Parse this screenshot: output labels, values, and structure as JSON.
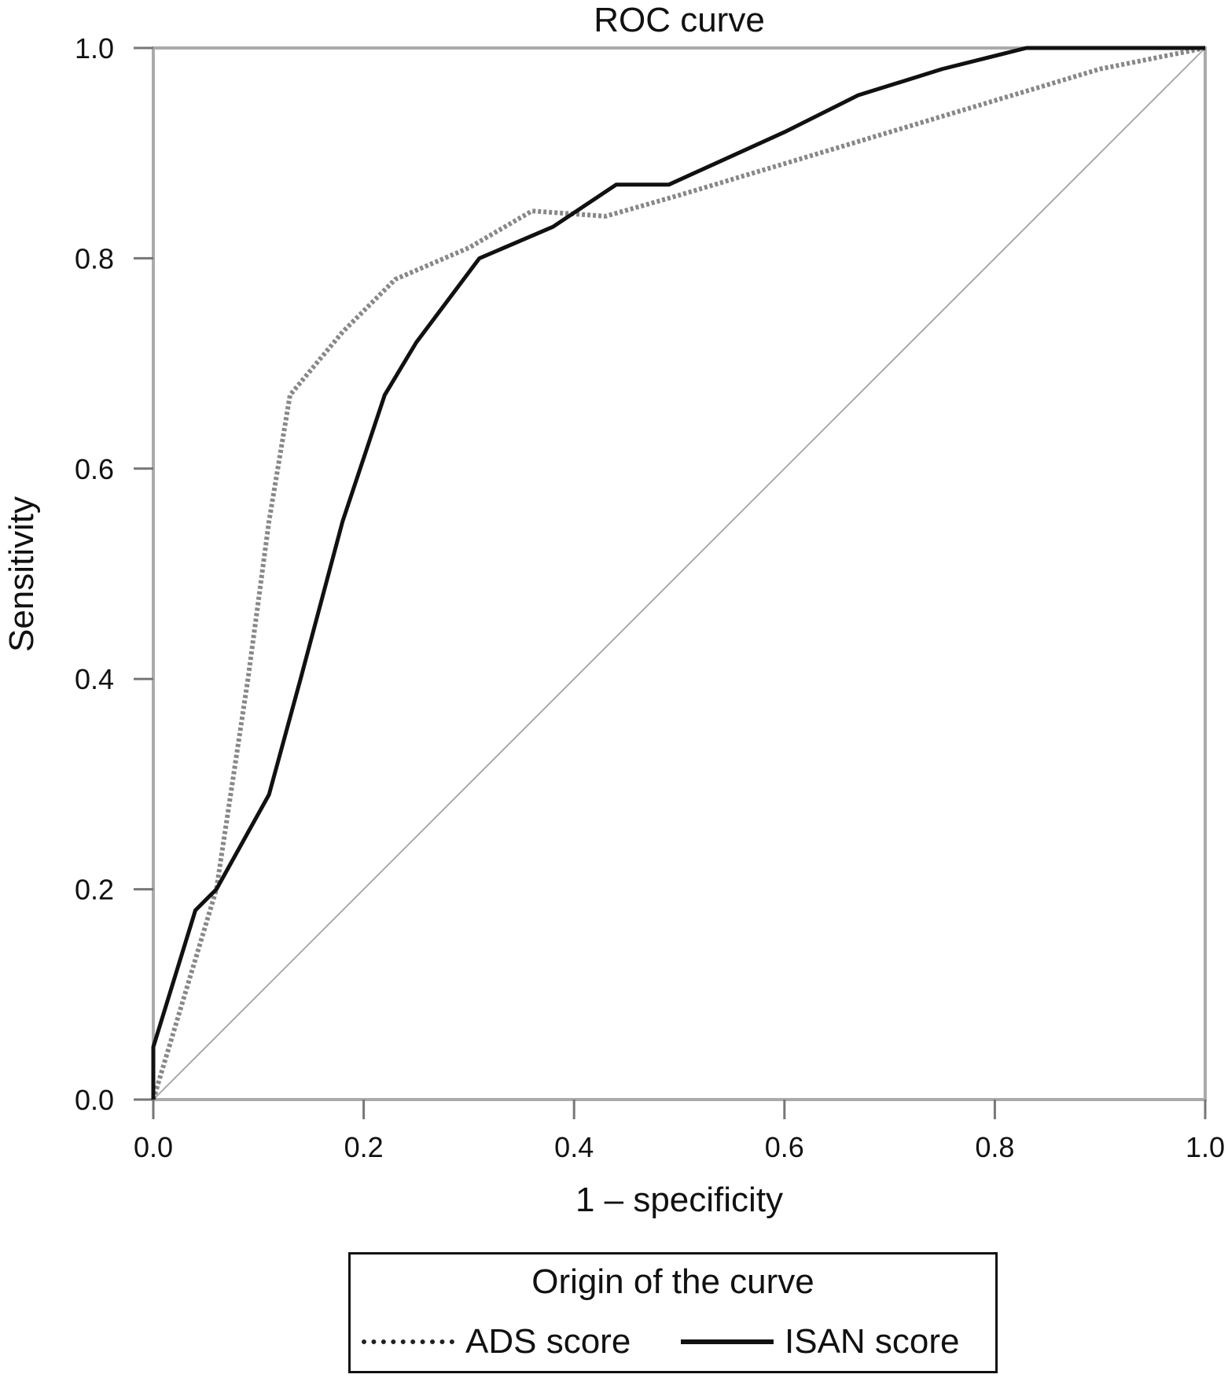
{
  "chart_data": {
    "type": "line",
    "title": "ROC curve",
    "xlabel": "1 – specificity",
    "ylabel": "Sensitivity",
    "xlim": [
      0,
      1
    ],
    "ylim": [
      0,
      1
    ],
    "xticks": [
      "0.0",
      "0.2",
      "0.4",
      "0.6",
      "0.8",
      "1.0"
    ],
    "yticks": [
      "0.0",
      "0.2",
      "0.4",
      "0.6",
      "0.8",
      "1.0"
    ],
    "grid": false,
    "legend": {
      "title": "Origin of the curve",
      "placement": "bottom"
    },
    "series": [
      {
        "name": "ADS score",
        "style": "dotted",
        "color": "#888888",
        "x": [
          0,
          0.03,
          0.06,
          0.09,
          0.11,
          0.13,
          0.18,
          0.23,
          0.3,
          0.36,
          0.43,
          0.5,
          0.6,
          0.7,
          0.8,
          0.9,
          1.0
        ],
        "y": [
          0,
          0.1,
          0.2,
          0.4,
          0.55,
          0.67,
          0.73,
          0.78,
          0.81,
          0.845,
          0.84,
          0.86,
          0.89,
          0.92,
          0.95,
          0.98,
          1.0
        ]
      },
      {
        "name": "ISAN score",
        "style": "solid",
        "color": "#111111",
        "x": [
          0,
          0,
          0.04,
          0.06,
          0.11,
          0.14,
          0.18,
          0.22,
          0.25,
          0.31,
          0.38,
          0.44,
          0.49,
          0.6,
          0.67,
          0.75,
          0.83,
          1.0
        ],
        "y": [
          0,
          0.05,
          0.18,
          0.2,
          0.29,
          0.4,
          0.55,
          0.67,
          0.72,
          0.8,
          0.83,
          0.87,
          0.87,
          0.92,
          0.955,
          0.98,
          1.0,
          1.0
        ]
      },
      {
        "name": "reference",
        "style": "thin",
        "color": "#aaaaaa",
        "x": [
          0,
          1
        ],
        "y": [
          0,
          1
        ]
      }
    ]
  }
}
